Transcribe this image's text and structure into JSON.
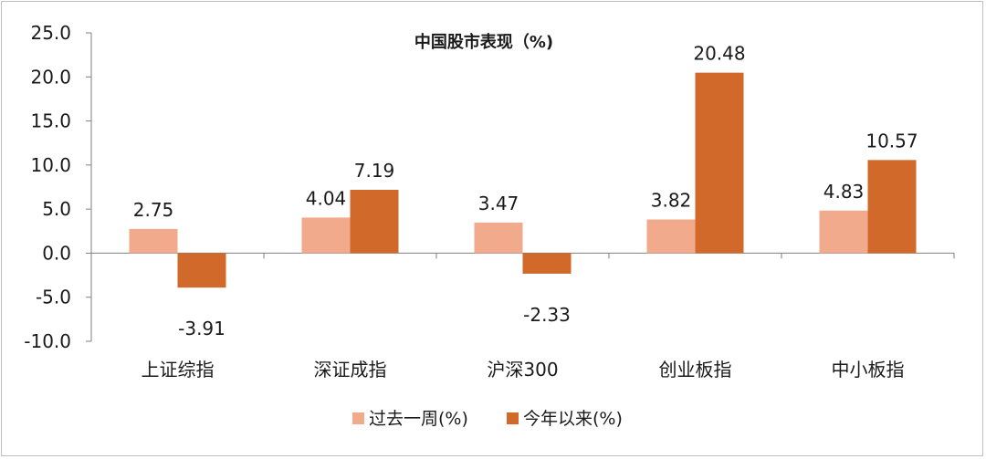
{
  "chart_data": {
    "type": "bar",
    "title": "中国股市表现（%)",
    "categories": [
      "上证综指",
      "深证成指",
      "沪深300",
      "创业板指",
      "中小板指"
    ],
    "series": [
      {
        "name": "过去一周(%)",
        "values": [
          2.75,
          4.04,
          3.47,
          3.82,
          4.83
        ],
        "color": "#f2aa8c"
      },
      {
        "name": "今年以来(%)",
        "values": [
          -3.91,
          7.19,
          -2.33,
          20.48,
          10.57
        ],
        "color": "#d0692a"
      }
    ],
    "ylim": [
      -10,
      25
    ],
    "yticks": [
      "25.0",
      "20.0",
      "15.0",
      "10.0",
      "5.0",
      "0.0",
      "-5.0",
      "-10.0"
    ],
    "grid": false,
    "legend_position": "bottom"
  }
}
